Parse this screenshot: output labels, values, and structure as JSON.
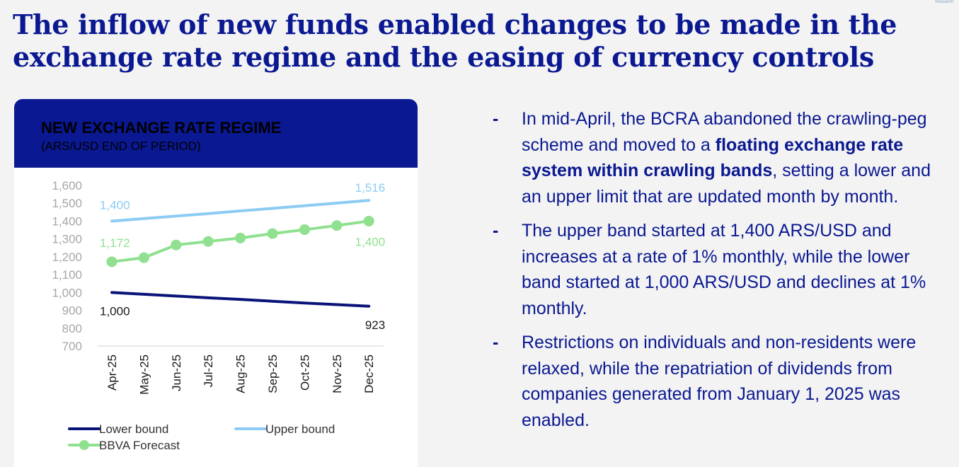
{
  "slide": {
    "title_line1": "The inflow of new funds enabled changes to be made in the",
    "title_line2": "exchange rate regime and the easing of currency controls",
    "corner_mark": "Research"
  },
  "card": {
    "title": "NEW EXCHANGE RATE REGIME",
    "subtitle": "(ARS/USD END OF PERIOD)"
  },
  "bullets": [
    {
      "pre": "In mid-April, the BCRA abandoned the crawling-peg scheme and moved to a ",
      "bold": "floating exchange rate system within crawling bands",
      "post": ", setting a lower and an upper limit that are updated month by month."
    },
    {
      "pre": "The upper band started at 1,400 ARS/USD and increases at a rate of 1% monthly, while the lower band started at 1,000 ARS/USD and declines at 1% monthly.",
      "bold": "",
      "post": ""
    },
    {
      "pre": "Restrictions on individuals and non-residents were relaxed, while the repatriation of dividends from companies generated from January 1, 2025 was enabled.",
      "bold": "",
      "post": ""
    }
  ],
  "colors": {
    "brand_navy": "#0a1891",
    "lower": "#0a1478",
    "upper": "#8ccbf3",
    "forecast": "#8fe08f",
    "axis_text": "#a6a6a6"
  },
  "chart_data": {
    "type": "line",
    "title": "NEW EXCHANGE RATE REGIME",
    "subtitle": "(ARS/USD END OF PERIOD)",
    "categories": [
      "Apr-25",
      "May-25",
      "Jun-25",
      "Jul-25",
      "Aug-25",
      "Sep-25",
      "Oct-25",
      "Nov-25",
      "Dec-25"
    ],
    "yticks": [
      "1,600",
      "1,500",
      "1,400",
      "1,300",
      "1,200",
      "1,100",
      "1,000",
      "900",
      "800",
      "700"
    ],
    "ylim": [
      700,
      1600
    ],
    "grid": false,
    "legend_position": "bottom",
    "series": [
      {
        "name": "Lower bound",
        "key": "lower",
        "values": [
          1000,
          990,
          980,
          970,
          961,
          951,
          941,
          932,
          923
        ],
        "markers": false,
        "labels": [
          {
            "index": 0,
            "text": "1,000"
          },
          {
            "index": 8,
            "text": "923"
          }
        ]
      },
      {
        "name": "Upper bound",
        "key": "upper",
        "values": [
          1400,
          1414,
          1428,
          1442,
          1457,
          1471,
          1486,
          1501,
          1516
        ],
        "markers": false,
        "labels": [
          {
            "index": 0,
            "text": "1,400"
          },
          {
            "index": 8,
            "text": "1,516"
          }
        ]
      },
      {
        "name": "BBVA Forecast",
        "key": "forecast",
        "values": [
          1172,
          1195,
          1266,
          1286,
          1305,
          1330,
          1352,
          1375,
          1400
        ],
        "markers": true,
        "labels": [
          {
            "index": 0,
            "text": "1,172"
          },
          {
            "index": 8,
            "text": "1,400"
          }
        ]
      }
    ]
  }
}
